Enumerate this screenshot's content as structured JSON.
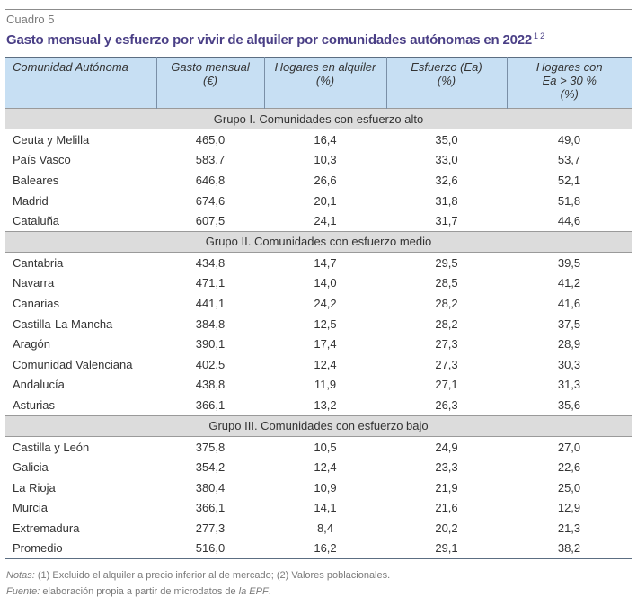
{
  "label": "Cuadro 5",
  "title": "Gasto mensual y esfuerzo por vivir de alquiler por comunidades autónomas en 2022",
  "title_sup": "1 2",
  "headers": [
    [
      "Comunidad Autónoma"
    ],
    [
      "Gasto mensual",
      "(€)"
    ],
    [
      "Hogares en alquiler",
      "(%)"
    ],
    [
      "Esfuerzo (Ea)",
      "(%)"
    ],
    [
      "Hogares con",
      "Ea > 30 %",
      "(%)"
    ]
  ],
  "groups": [
    {
      "title": "Grupo I. Comunidades con esfuerzo alto",
      "rows": [
        [
          "Ceuta y Melilla",
          "465,0",
          "16,4",
          "35,0",
          "49,0"
        ],
        [
          "País Vasco",
          "583,7",
          "10,3",
          "33,0",
          "53,7"
        ],
        [
          "Baleares",
          "646,8",
          "26,6",
          "32,6",
          "52,1"
        ],
        [
          "Madrid",
          "674,6",
          "20,1",
          "31,8",
          "51,8"
        ],
        [
          "Cataluña",
          "607,5",
          "24,1",
          "31,7",
          "44,6"
        ]
      ]
    },
    {
      "title": "Grupo II. Comunidades con esfuerzo medio",
      "rows": [
        [
          "Cantabria",
          "434,8",
          "14,7",
          "29,5",
          "39,5"
        ],
        [
          "Navarra",
          "471,1",
          "14,0",
          "28,5",
          "41,2"
        ],
        [
          "Canarias",
          "441,1",
          "24,2",
          "28,2",
          "41,6"
        ],
        [
          "Castilla-La Mancha",
          "384,8",
          "12,5",
          "28,2",
          "37,5"
        ],
        [
          "Aragón",
          "390,1",
          "17,4",
          "27,3",
          "28,9"
        ],
        [
          "Comunidad Valenciana",
          "402,5",
          "12,4",
          "27,3",
          "30,3"
        ],
        [
          "Andalucía",
          "438,8",
          "11,9",
          "27,1",
          "31,3"
        ],
        [
          "Asturias",
          "366,1",
          "13,2",
          "26,3",
          "35,6"
        ]
      ]
    },
    {
      "title": "Grupo III. Comunidades con esfuerzo bajo",
      "rows": [
        [
          "Castilla y León",
          "375,8",
          "10,5",
          "24,9",
          "27,0"
        ],
        [
          "Galicia",
          "354,2",
          "12,4",
          "23,3",
          "22,6"
        ],
        [
          "La Rioja",
          "380,4",
          "10,9",
          "21,9",
          "25,0"
        ],
        [
          "Murcia",
          "366,1",
          "14,1",
          "21,6",
          "12,9"
        ],
        [
          "Extremadura",
          "277,3",
          "8,4",
          "20,2",
          "21,3"
        ],
        [
          "Promedio",
          "516,0",
          "16,2",
          "29,1",
          "38,2"
        ]
      ]
    }
  ],
  "notes": {
    "notes_label": "Notas:",
    "notes_text": " (1) Excluido el alquiler a precio inferior al de mercado; (2) Valores poblacionales.",
    "source_label": "Fuente:",
    "source_text": " elaboración propia a partir de microdatos de ",
    "source_italic": "la EPF",
    "source_end": "."
  }
}
